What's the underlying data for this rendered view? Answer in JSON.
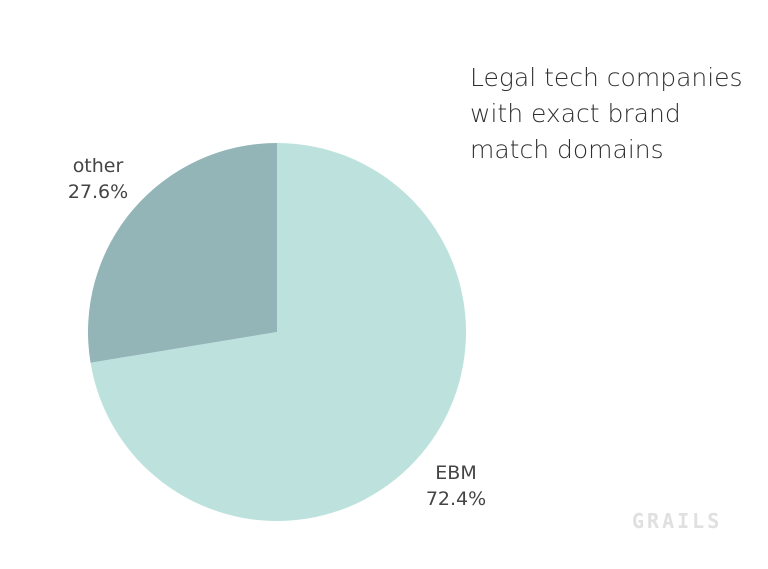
{
  "chart_data": {
    "type": "pie",
    "title_lines": [
      "Legal tech companies",
      "with exact brand",
      "match domains"
    ],
    "slices": [
      {
        "label": "EBM",
        "value": 72.4,
        "value_label": "72.4%",
        "color": "#bde2dd"
      },
      {
        "label": "other",
        "value": 27.6,
        "value_label": "27.6%",
        "color": "#93b5b8"
      }
    ],
    "start_angle": "top",
    "direction": "clockwise"
  },
  "watermark": "GRAILS"
}
